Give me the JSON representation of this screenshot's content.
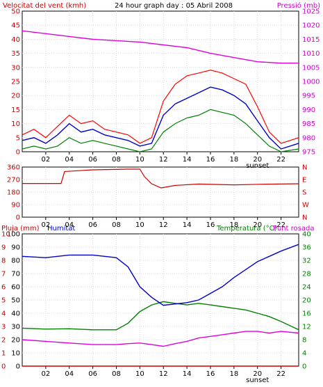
{
  "chart_data": [
    {
      "type": "line",
      "title": "24 hour graph day : 05 Abril 2008",
      "ylabel": "Velocitat del vent (kmh)",
      "y2label": "Pressió (mb)",
      "ylim": [
        0,
        50
      ],
      "y2lim": [
        975,
        1025
      ],
      "yticks": [
        "0",
        "5",
        "10",
        "15",
        "20",
        "25",
        "30",
        "35",
        "40",
        "45",
        "50"
      ],
      "y2ticks": [
        "975",
        "980",
        "985",
        "990",
        "995",
        "1000",
        "1005",
        "1010",
        "1015",
        "1020",
        "1025"
      ],
      "xticks": [
        "02",
        "04",
        "06",
        "08",
        "10",
        "12",
        "14",
        "16",
        "18",
        "20",
        "22"
      ],
      "xnote": "sunset",
      "xnote_hour": 20,
      "grid": true,
      "colors": {
        "gust": "#ff0000",
        "avg": "#0000cc",
        "low": "#008000",
        "pressure": "#e000e0",
        "left_axis": "#cc0000",
        "right_axis": "#cc00cc"
      },
      "series": [
        {
          "key": "gust",
          "x": [
            0,
            1,
            2,
            3,
            4,
            5,
            6,
            7,
            8,
            9,
            10,
            11,
            12,
            13,
            14,
            15,
            16,
            17,
            18,
            19,
            20,
            21,
            22,
            23.5
          ],
          "values": [
            6,
            8,
            5,
            9,
            13,
            10,
            11,
            8,
            7,
            6,
            3,
            5,
            18,
            24,
            27,
            28,
            29,
            28,
            26,
            24,
            16,
            7,
            3,
            5
          ]
        },
        {
          "key": "avg",
          "x": [
            0,
            1,
            2,
            3,
            4,
            5,
            6,
            7,
            8,
            9,
            10,
            11,
            12,
            13,
            14,
            15,
            16,
            17,
            18,
            19,
            20,
            21,
            22,
            23.5
          ],
          "values": [
            4,
            5,
            3,
            6,
            10,
            7,
            8,
            6,
            5,
            4,
            2,
            3,
            13,
            17,
            19,
            21,
            23,
            22,
            20,
            17,
            11,
            5,
            1,
            3
          ]
        },
        {
          "key": "low",
          "x": [
            0,
            1,
            2,
            3,
            4,
            5,
            6,
            7,
            8,
            9,
            10,
            11,
            12,
            13,
            14,
            15,
            16,
            17,
            18,
            19,
            20,
            21,
            22,
            23.5
          ],
          "values": [
            1,
            2,
            1,
            2,
            5,
            3,
            4,
            3,
            2,
            1,
            0,
            1,
            7,
            10,
            12,
            13,
            15,
            14,
            13,
            10,
            6,
            2,
            0,
            1
          ]
        },
        {
          "key": "pressure",
          "x": [
            0,
            2,
            4,
            6,
            8,
            10,
            12,
            14,
            16,
            18,
            20,
            22,
            23.5
          ],
          "values": [
            1018,
            1017,
            1016,
            1015,
            1014.5,
            1014,
            1013,
            1012,
            1010,
            1008.5,
            1007,
            1006.5,
            1006.5
          ]
        }
      ]
    },
    {
      "type": "line",
      "ylim": [
        0,
        360
      ],
      "yticks": [
        "0",
        "90",
        "180",
        "270",
        "360"
      ],
      "y2ticks": [
        "N",
        "W",
        "S",
        "E",
        "N"
      ],
      "xticks": [
        "02",
        "04",
        "06",
        "08",
        "10",
        "12",
        "14",
        "16",
        "18",
        "20",
        "22"
      ],
      "grid": true,
      "colors": {
        "direction": "#cc0000"
      },
      "series": [
        {
          "key": "direction",
          "x": [
            0,
            3.3,
            3.6,
            6,
            9,
            10,
            10.4,
            11,
            11.8,
            13,
            15,
            18,
            20,
            23.5
          ],
          "values": [
            242,
            242,
            328,
            340,
            345,
            345,
            290,
            240,
            210,
            228,
            238,
            232,
            236,
            240
          ]
        }
      ]
    },
    {
      "type": "line",
      "ylabel": "Pluja (mm)",
      "ylabel2": "Humitat",
      "y2label": "Temperatura (°C)",
      "y2label2": "Punt rosada",
      "ylim": [
        0,
        100
      ],
      "y2lim": [
        0,
        40
      ],
      "yticks": [
        "0",
        "10",
        "20",
        "30",
        "40",
        "50",
        "60",
        "70",
        "80",
        "90",
        "100"
      ],
      "yticks_rain": [
        "0",
        "1",
        "2",
        "3",
        "4",
        "5",
        "6",
        "7",
        "8",
        "9",
        "10"
      ],
      "y2ticks": [
        "0",
        "4",
        "8",
        "12",
        "16",
        "20",
        "24",
        "28",
        "32",
        "36",
        "40"
      ],
      "xticks": [
        "02",
        "04",
        "06",
        "08",
        "10",
        "12",
        "14",
        "16",
        "18",
        "20",
        "22"
      ],
      "xnote": "sunset",
      "xnote_hour": 20,
      "grid": true,
      "colors": {
        "humidity": "#0000cc",
        "temperature": "#008000",
        "dewpoint": "#e000e0",
        "rain": "#cc0000",
        "left_axis": "#cc0000",
        "right_axis": "#008000"
      },
      "series": [
        {
          "key": "humidity",
          "x": [
            0,
            2,
            4,
            6,
            8,
            9,
            10,
            11,
            12,
            13,
            14,
            15,
            16,
            17,
            18,
            19,
            20,
            21,
            22,
            23.5
          ],
          "values": [
            83,
            82,
            84,
            84,
            82,
            75,
            60,
            52,
            46,
            47,
            48,
            50,
            55,
            60,
            67,
            73,
            79,
            83,
            87,
            92
          ]
        },
        {
          "key": "temperature",
          "x": [
            0,
            2,
            4,
            6,
            8,
            9,
            10,
            11,
            12,
            13,
            14,
            15,
            16,
            17,
            18,
            19,
            20,
            21,
            22,
            23.5
          ],
          "values": [
            11.5,
            11.2,
            11.3,
            11,
            11,
            13,
            16.5,
            18.5,
            19.5,
            19,
            18.5,
            19,
            18.5,
            18,
            17.5,
            17,
            16,
            15,
            13.5,
            11
          ]
        },
        {
          "key": "dewpoint",
          "x": [
            0,
            2,
            4,
            6,
            8,
            9,
            10,
            11,
            12,
            13,
            14,
            15,
            16,
            17,
            18,
            19,
            20,
            21,
            22,
            23.5
          ],
          "values": [
            8,
            7.5,
            7,
            6.5,
            6.5,
            6.8,
            7,
            6.5,
            6,
            6.8,
            7.5,
            8.5,
            9,
            9.5,
            10,
            10.5,
            10.5,
            10,
            10.5,
            10
          ]
        },
        {
          "key": "rain",
          "x": [
            0,
            23.5
          ],
          "values": [
            0,
            0
          ]
        }
      ]
    }
  ]
}
